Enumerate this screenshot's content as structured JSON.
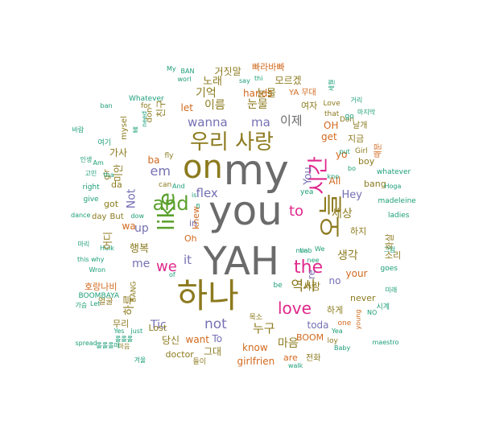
{
  "palette": {
    "gray": "#6b6b6b",
    "olive": "#8c7a1e",
    "orange": "#d2691e",
    "green": "#5aa02c",
    "magenta": "#e0288c",
    "purple": "#7570b3",
    "teal": "#1b9e77",
    "brown": "#a6761d"
  },
  "words": [
    {
      "text": "you",
      "color": "gray"
    },
    {
      "text": "my",
      "color": "gray"
    },
    {
      "text": "YAH",
      "color": "gray"
    },
    {
      "text": "on",
      "color": "olive"
    },
    {
      "text": "하나",
      "color": "olive"
    },
    {
      "text": "like",
      "color": "green"
    },
    {
      "text": "우리 사랑",
      "color": "olive"
    },
    {
      "text": "and",
      "color": "green"
    },
    {
      "text": "오늘",
      "color": "olive"
    },
    {
      "text": "시간",
      "color": "magenta"
    },
    {
      "text": "the",
      "color": "magenta"
    },
    {
      "text": "love",
      "color": "magenta"
    },
    {
      "text": "to",
      "color": "magenta"
    },
    {
      "text": "we",
      "color": "magenta"
    },
    {
      "text": "em",
      "color": "purple"
    },
    {
      "text": "wanna",
      "color": "purple"
    },
    {
      "text": "ma",
      "color": "purple"
    },
    {
      "text": "이제",
      "color": "gray"
    },
    {
      "text": "flex",
      "color": "purple"
    },
    {
      "text": "not",
      "color": "purple"
    },
    {
      "text": "it",
      "color": "purple"
    },
    {
      "text": "me",
      "color": "purple"
    },
    {
      "text": "up",
      "color": "purple"
    },
    {
      "text": "Not",
      "color": "purple"
    },
    {
      "text": "You",
      "color": "purple"
    },
    {
      "text": "Hey",
      "color": "purple"
    },
    {
      "text": "Tic",
      "color": "purple"
    },
    {
      "text": "역사",
      "color": "olive"
    },
    {
      "text": "누구",
      "color": "olive"
    },
    {
      "text": "세상",
      "color": "olive"
    },
    {
      "text": "생각",
      "color": "olive"
    },
    {
      "text": "기억",
      "color": "olive"
    },
    {
      "text": "눈물",
      "color": "olive"
    },
    {
      "text": "이름",
      "color": "olive"
    },
    {
      "text": "노래",
      "color": "olive"
    },
    {
      "text": "행복",
      "color": "olive"
    },
    {
      "text": "하루",
      "color": "olive"
    },
    {
      "text": "마음",
      "color": "olive"
    },
    {
      "text": "모르겠",
      "color": "olive"
    },
    {
      "text": "빠라바빠",
      "color": "orange"
    },
    {
      "text": "거짓말",
      "color": "olive"
    },
    {
      "text": "hands",
      "color": "orange"
    },
    {
      "text": "OH",
      "color": "orange"
    },
    {
      "text": "get",
      "color": "orange"
    },
    {
      "text": "yo",
      "color": "orange"
    },
    {
      "text": "All",
      "color": "orange"
    },
    {
      "text": "ba",
      "color": "orange"
    },
    {
      "text": "wa",
      "color": "orange"
    },
    {
      "text": "let",
      "color": "orange"
    },
    {
      "text": "knew",
      "color": "orange"
    },
    {
      "text": "toda",
      "color": "purple"
    },
    {
      "text": "your",
      "color": "orange"
    },
    {
      "text": "no",
      "color": "purple"
    },
    {
      "text": "re",
      "color": "purple"
    },
    {
      "text": "want",
      "color": "orange"
    },
    {
      "text": "To",
      "color": "purple"
    },
    {
      "text": "know",
      "color": "orange"
    },
    {
      "text": "그대",
      "color": "olive"
    },
    {
      "text": "girlfrien",
      "color": "orange"
    },
    {
      "text": "사랑",
      "color": "olive"
    },
    {
      "text": "하게",
      "color": "olive"
    },
    {
      "text": "Lost",
      "color": "olive"
    },
    {
      "text": "당신",
      "color": "olive"
    },
    {
      "text": "got",
      "color": "olive"
    },
    {
      "text": "in",
      "color": "purple"
    },
    {
      "text": "da",
      "color": "olive"
    },
    {
      "text": "하지",
      "color": "olive"
    },
    {
      "text": "소리",
      "color": "olive"
    },
    {
      "text": "화살",
      "color": "olive"
    },
    {
      "text": "지금",
      "color": "olive"
    },
    {
      "text": "여자",
      "color": "olive"
    },
    {
      "text": "bang",
      "color": "olive"
    },
    {
      "text": "boy",
      "color": "olive"
    },
    {
      "text": "never",
      "color": "olive"
    },
    {
      "text": "BOOM",
      "color": "orange"
    },
    {
      "text": "are",
      "color": "orange"
    },
    {
      "text": "doctor",
      "color": "olive"
    },
    {
      "text": "호랑나비",
      "color": "orange"
    },
    {
      "text": "무리",
      "color": "olive"
    },
    {
      "text": "BOOMBAYA",
      "color": "teal"
    },
    {
      "text": "얼굴",
      "color": "olive"
    },
    {
      "text": "Whatever",
      "color": "teal"
    },
    {
      "text": "whatever",
      "color": "teal"
    },
    {
      "text": "madeleine",
      "color": "teal"
    },
    {
      "text": "ladies",
      "color": "teal"
    },
    {
      "text": "goes",
      "color": "teal"
    },
    {
      "text": "Hoga",
      "color": "teal"
    },
    {
      "text": "maestro",
      "color": "teal"
    },
    {
      "text": "spread",
      "color": "teal"
    },
    {
      "text": "dance",
      "color": "teal"
    },
    {
      "text": "give",
      "color": "teal"
    },
    {
      "text": "right",
      "color": "teal"
    },
    {
      "text": "this why",
      "color": "teal"
    },
    {
      "text": "Wron",
      "color": "teal"
    },
    {
      "text": "Hulk",
      "color": "teal"
    },
    {
      "text": "Love",
      "color": "olive"
    },
    {
      "text": "that",
      "color": "olive"
    },
    {
      "text": "Don",
      "color": "olive"
    },
    {
      "text": "날개",
      "color": "olive"
    },
    {
      "text": "Girl",
      "color": "olive"
    },
    {
      "text": "때문",
      "color": "orange"
    },
    {
      "text": "one",
      "color": "orange"
    },
    {
      "text": "loy",
      "color": "olive"
    },
    {
      "text": "Yea",
      "color": "teal"
    },
    {
      "text": "young",
      "color": "orange"
    },
    {
      "text": "Baby",
      "color": "teal"
    },
    {
      "text": "YA 무대",
      "color": "orange"
    },
    {
      "text": "don",
      "color": "olive"
    },
    {
      "text": "친구",
      "color": "olive"
    },
    {
      "text": "가사",
      "color": "olive"
    },
    {
      "text": "미안",
      "color": "olive"
    },
    {
      "text": "어디",
      "color": "olive"
    },
    {
      "text": "BANG",
      "color": "olive"
    },
    {
      "text": "But",
      "color": "olive"
    },
    {
      "text": "day",
      "color": "olive"
    },
    {
      "text": "can",
      "color": "olive"
    },
    {
      "text": "fly",
      "color": "olive"
    },
    {
      "text": "for",
      "color": "olive"
    },
    {
      "text": "Am",
      "color": "teal"
    },
    {
      "text": "ban",
      "color": "teal"
    },
    {
      "text": "My",
      "color": "teal"
    },
    {
      "text": "BAN",
      "color": "teal"
    },
    {
      "text": "worl",
      "color": "teal"
    },
    {
      "text": "say",
      "color": "teal"
    },
    {
      "text": "thi",
      "color": "teal"
    },
    {
      "text": "yea",
      "color": "teal"
    },
    {
      "text": "go",
      "color": "teal"
    },
    {
      "text": "bo",
      "color": "teal"
    },
    {
      "text": "Oh",
      "color": "orange"
    },
    {
      "text": "min",
      "color": "teal"
    },
    {
      "text": "We",
      "color": "teal"
    },
    {
      "text": "be",
      "color": "teal"
    },
    {
      "text": "just",
      "color": "teal"
    },
    {
      "text": "Yes",
      "color": "teal"
    },
    {
      "text": "put",
      "color": "teal"
    },
    {
      "text": "need",
      "color": "teal"
    },
    {
      "text": "mysel",
      "color": "olive"
    },
    {
      "text": "gir",
      "color": "olive"
    },
    {
      "text": "tha",
      "color": "teal"
    },
    {
      "text": "dow",
      "color": "teal"
    },
    {
      "text": "전화",
      "color": "olive"
    },
    {
      "text": "목소",
      "color": "olive"
    },
    {
      "text": "여기",
      "color": "teal"
    },
    {
      "text": "마리",
      "color": "teal"
    },
    {
      "text": "고민",
      "color": "teal"
    },
    {
      "text": "인생",
      "color": "teal"
    },
    {
      "text": "시계",
      "color": "teal"
    },
    {
      "text": "거리",
      "color": "teal"
    },
    {
      "text": "미래",
      "color": "teal"
    },
    {
      "text": "마지막",
      "color": "teal"
    },
    {
      "text": "세월",
      "color": "teal"
    },
    {
      "text": "겨울",
      "color": "teal"
    },
    {
      "text": "마음",
      "color": "olive"
    },
    {
      "text": "롤롤롤매",
      "color": "teal"
    },
    {
      "text": "롤롤롤",
      "color": "teal"
    },
    {
      "text": "NO",
      "color": "teal"
    },
    {
      "text": "kno",
      "color": "teal"
    },
    {
      "text": "of",
      "color": "teal"
    },
    {
      "text": "is",
      "color": "teal"
    },
    {
      "text": "And",
      "color": "teal"
    },
    {
      "text": "fi",
      "color": "teal"
    },
    {
      "text": "bab",
      "color": "teal"
    },
    {
      "text": "nee",
      "color": "teal"
    },
    {
      "text": "walk",
      "color": "teal"
    },
    {
      "text": "가슴",
      "color": "teal"
    },
    {
      "text": "그럼",
      "color": "teal"
    },
    {
      "text": "Let",
      "color": "teal"
    },
    {
      "text": "들이",
      "color": "olive"
    },
    {
      "text": "바람",
      "color": "teal"
    },
    {
      "text": "불",
      "color": "teal"
    },
    {
      "text": "눈물",
      "color": "olive"
    }
  ]
}
